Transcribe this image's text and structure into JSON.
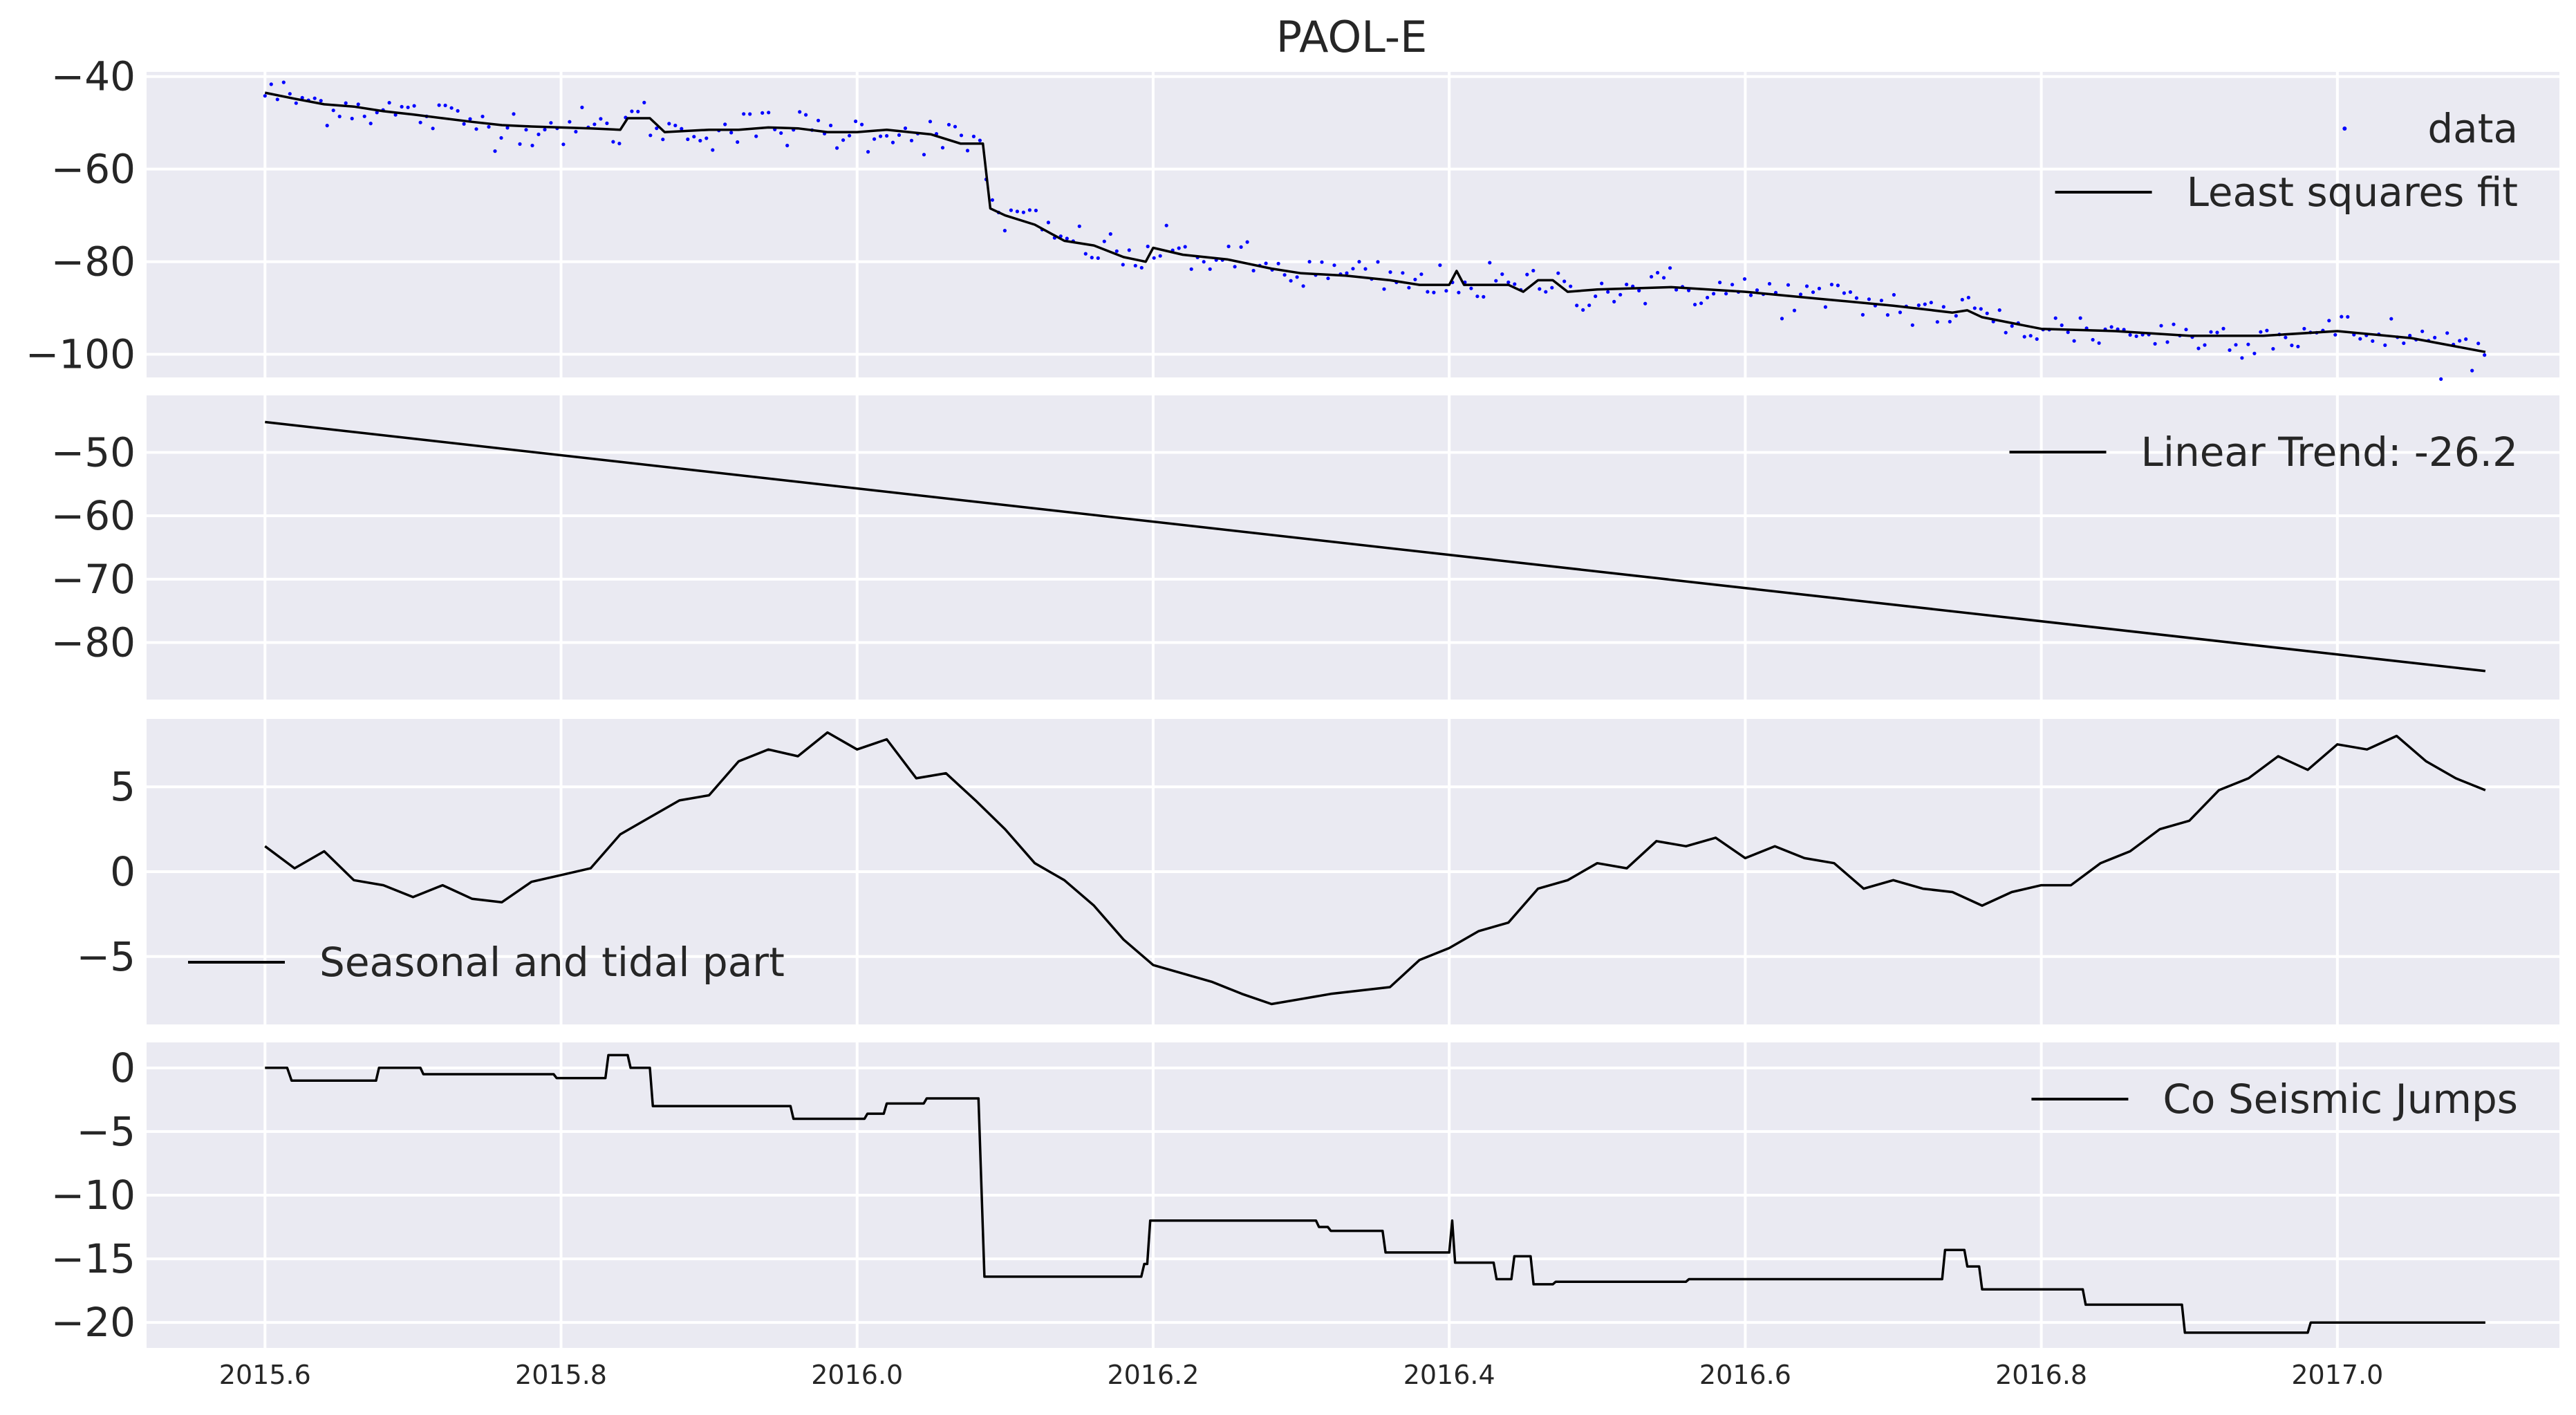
{
  "figure": {
    "title": "PAOL-E"
  },
  "chart_data": [
    {
      "type": "scatter+line",
      "panel": 1,
      "xlim": [
        2015.52,
        2017.15
      ],
      "ylim": [
        -105,
        -39
      ],
      "yticks": [
        -40,
        -60,
        -80,
        -100
      ],
      "ytick_labels": [
        "−40",
        "−60",
        "−80",
        "−100"
      ],
      "grid": true,
      "legend_placement": "upper-right",
      "series": [
        {
          "name": "data",
          "kind": "points",
          "color": "#0000ff",
          "model": {
            "t0": 2015.6,
            "t1": 2017.1,
            "y0": -44,
            "trend_total": -52,
            "jump_at": 2016.085,
            "jump": -12,
            "noise": 2.2,
            "step": 0.0042
          }
        },
        {
          "name": "Least squares fit",
          "kind": "line",
          "color": "#000000",
          "points": [
            [
              2015.6,
              -43.5
            ],
            [
              2015.62,
              -44.8
            ],
            [
              2015.64,
              -46
            ],
            [
              2015.66,
              -46.5
            ],
            [
              2015.68,
              -47.5
            ],
            [
              2015.7,
              -48.2
            ],
            [
              2015.72,
              -49
            ],
            [
              2015.74,
              -49.8
            ],
            [
              2015.76,
              -50.5
            ],
            [
              2015.78,
              -50.8
            ],
            [
              2015.8,
              -51
            ],
            [
              2015.82,
              -51.2
            ],
            [
              2015.84,
              -51.5
            ],
            [
              2015.845,
              -49
            ],
            [
              2015.86,
              -49
            ],
            [
              2015.87,
              -52
            ],
            [
              2015.9,
              -51.5
            ],
            [
              2015.92,
              -51.5
            ],
            [
              2015.94,
              -51
            ],
            [
              2015.96,
              -51.2
            ],
            [
              2015.98,
              -52
            ],
            [
              2016.0,
              -52
            ],
            [
              2016.02,
              -51.5
            ],
            [
              2016.05,
              -52.5
            ],
            [
              2016.07,
              -54.5
            ],
            [
              2016.085,
              -54.5
            ],
            [
              2016.09,
              -68.5
            ],
            [
              2016.1,
              -70
            ],
            [
              2016.12,
              -72
            ],
            [
              2016.14,
              -75.5
            ],
            [
              2016.16,
              -76.5
            ],
            [
              2016.18,
              -79
            ],
            [
              2016.195,
              -80
            ],
            [
              2016.2,
              -77
            ],
            [
              2016.22,
              -78.5
            ],
            [
              2016.25,
              -79.5
            ],
            [
              2016.28,
              -81.5
            ],
            [
              2016.3,
              -82.5
            ],
            [
              2016.33,
              -83
            ],
            [
              2016.36,
              -84
            ],
            [
              2016.38,
              -85
            ],
            [
              2016.4,
              -85
            ],
            [
              2016.405,
              -82
            ],
            [
              2016.41,
              -85
            ],
            [
              2016.44,
              -85
            ],
            [
              2016.45,
              -86.5
            ],
            [
              2016.46,
              -84
            ],
            [
              2016.47,
              -84
            ],
            [
              2016.48,
              -86.5
            ],
            [
              2016.5,
              -86
            ],
            [
              2016.55,
              -85.5
            ],
            [
              2016.6,
              -86.5
            ],
            [
              2016.65,
              -88
            ],
            [
              2016.7,
              -89.5
            ],
            [
              2016.74,
              -91
            ],
            [
              2016.75,
              -90.5
            ],
            [
              2016.76,
              -92
            ],
            [
              2016.8,
              -94.5
            ],
            [
              2016.85,
              -95
            ],
            [
              2016.9,
              -96
            ],
            [
              2016.95,
              -96
            ],
            [
              2017.0,
              -95
            ],
            [
              2017.05,
              -96.5
            ],
            [
              2017.1,
              -99.5
            ]
          ]
        }
      ]
    },
    {
      "type": "line",
      "panel": 2,
      "xlim": [
        2015.52,
        2017.15
      ],
      "ylim": [
        -89,
        -41
      ],
      "yticks": [
        -50,
        -60,
        -70,
        -80
      ],
      "ytick_labels": [
        "−50",
        "−60",
        "−70",
        "−80"
      ],
      "grid": true,
      "legend_placement": "upper-right",
      "series": [
        {
          "name": "Linear Trend: -26.2",
          "color": "#000000",
          "points": [
            [
              2015.6,
              -45.2
            ],
            [
              2017.1,
              -84.5
            ]
          ]
        }
      ]
    },
    {
      "type": "line",
      "panel": 3,
      "xlim": [
        2015.52,
        2017.15
      ],
      "ylim": [
        -9,
        9
      ],
      "yticks": [
        5,
        0,
        -5
      ],
      "ytick_labels": [
        "5",
        "0",
        "−5"
      ],
      "grid": true,
      "legend_placement": "lower-left",
      "series": [
        {
          "name": "Seasonal and tidal part",
          "color": "#000000",
          "points": [
            [
              2015.6,
              1.5
            ],
            [
              2015.62,
              0.2
            ],
            [
              2015.64,
              1.2
            ],
            [
              2015.66,
              -0.5
            ],
            [
              2015.68,
              -0.8
            ],
            [
              2015.7,
              -1.5
            ],
            [
              2015.72,
              -0.8
            ],
            [
              2015.74,
              -1.6
            ],
            [
              2015.76,
              -1.8
            ],
            [
              2015.78,
              -0.6
            ],
            [
              2015.8,
              -0.2
            ],
            [
              2015.82,
              0.2
            ],
            [
              2015.84,
              2.2
            ],
            [
              2015.86,
              3.2
            ],
            [
              2015.88,
              4.2
            ],
            [
              2015.9,
              4.5
            ],
            [
              2015.92,
              6.5
            ],
            [
              2015.94,
              7.2
            ],
            [
              2015.96,
              6.8
            ],
            [
              2015.98,
              8.2
            ],
            [
              2016.0,
              7.2
            ],
            [
              2016.02,
              7.8
            ],
            [
              2016.04,
              5.5
            ],
            [
              2016.06,
              5.8
            ],
            [
              2016.08,
              4.2
            ],
            [
              2016.1,
              2.5
            ],
            [
              2016.12,
              0.5
            ],
            [
              2016.14,
              -0.5
            ],
            [
              2016.16,
              -2
            ],
            [
              2016.18,
              -4
            ],
            [
              2016.2,
              -5.5
            ],
            [
              2016.22,
              -6
            ],
            [
              2016.24,
              -6.5
            ],
            [
              2016.26,
              -7.2
            ],
            [
              2016.28,
              -7.8
            ],
            [
              2016.3,
              -7.5
            ],
            [
              2016.32,
              -7.2
            ],
            [
              2016.34,
              -7
            ],
            [
              2016.36,
              -6.8
            ],
            [
              2016.38,
              -5.2
            ],
            [
              2016.4,
              -4.5
            ],
            [
              2016.42,
              -3.5
            ],
            [
              2016.44,
              -3
            ],
            [
              2016.46,
              -1
            ],
            [
              2016.48,
              -0.5
            ],
            [
              2016.5,
              0.5
            ],
            [
              2016.52,
              0.2
            ],
            [
              2016.54,
              1.8
            ],
            [
              2016.56,
              1.5
            ],
            [
              2016.58,
              2
            ],
            [
              2016.6,
              0.8
            ],
            [
              2016.62,
              1.5
            ],
            [
              2016.64,
              0.8
            ],
            [
              2016.66,
              0.5
            ],
            [
              2016.68,
              -1
            ],
            [
              2016.7,
              -0.5
            ],
            [
              2016.72,
              -1
            ],
            [
              2016.74,
              -1.2
            ],
            [
              2016.76,
              -2
            ],
            [
              2016.78,
              -1.2
            ],
            [
              2016.8,
              -0.8
            ],
            [
              2016.82,
              -0.8
            ],
            [
              2016.84,
              0.5
            ],
            [
              2016.86,
              1.2
            ],
            [
              2016.88,
              2.5
            ],
            [
              2016.9,
              3
            ],
            [
              2016.92,
              4.8
            ],
            [
              2016.94,
              5.5
            ],
            [
              2016.96,
              6.8
            ],
            [
              2016.98,
              6
            ],
            [
              2017.0,
              7.5
            ],
            [
              2017.02,
              7.2
            ],
            [
              2017.04,
              8
            ],
            [
              2017.06,
              6.5
            ],
            [
              2017.08,
              5.5
            ],
            [
              2017.1,
              4.8
            ]
          ]
        }
      ]
    },
    {
      "type": "line",
      "panel": 4,
      "xlim": [
        2015.52,
        2017.15
      ],
      "ylim": [
        -22,
        2
      ],
      "yticks": [
        0,
        -5,
        -10,
        -15,
        -20
      ],
      "ytick_labels": [
        "0",
        "−5",
        "−10",
        "−15",
        "−20"
      ],
      "xticks": [
        2015.6,
        2015.8,
        2016.0,
        2016.2,
        2016.4,
        2016.6,
        2016.8,
        2017.0
      ],
      "xtick_labels": [
        "2015.6",
        "2015.8",
        "2016.0",
        "2016.2",
        "2016.4",
        "2016.6",
        "2016.8",
        "2017.0"
      ],
      "grid": true,
      "legend_placement": "upper-right",
      "series": [
        {
          "name": "Co Seismic Jumps",
          "color": "#000000",
          "points": [
            [
              2015.6,
              0
            ],
            [
              2015.615,
              0
            ],
            [
              2015.618,
              -1
            ],
            [
              2015.675,
              -1
            ],
            [
              2015.677,
              0
            ],
            [
              2015.705,
              0
            ],
            [
              2015.707,
              -0.5
            ],
            [
              2015.795,
              -0.5
            ],
            [
              2015.797,
              -0.8
            ],
            [
              2015.83,
              -0.8
            ],
            [
              2015.832,
              1
            ],
            [
              2015.845,
              1
            ],
            [
              2015.847,
              0
            ],
            [
              2015.86,
              0
            ],
            [
              2015.862,
              -3
            ],
            [
              2015.955,
              -3
            ],
            [
              2015.957,
              -4
            ],
            [
              2016.005,
              -4
            ],
            [
              2016.007,
              -3.6
            ],
            [
              2016.018,
              -3.6
            ],
            [
              2016.02,
              -2.8
            ],
            [
              2016.045,
              -2.8
            ],
            [
              2016.047,
              -2.4
            ],
            [
              2016.082,
              -2.4
            ],
            [
              2016.086,
              -16.4
            ],
            [
              2016.192,
              -16.4
            ],
            [
              2016.194,
              -15.4
            ],
            [
              2016.196,
              -15.4
            ],
            [
              2016.198,
              -12
            ],
            [
              2016.31,
              -12
            ],
            [
              2016.312,
              -12.5
            ],
            [
              2016.318,
              -12.5
            ],
            [
              2016.32,
              -12.8
            ],
            [
              2016.355,
              -12.8
            ],
            [
              2016.357,
              -14.5
            ],
            [
              2016.4,
              -14.5
            ],
            [
              2016.402,
              -12
            ],
            [
              2016.404,
              -15.3
            ],
            [
              2016.43,
              -15.3
            ],
            [
              2016.432,
              -16.6
            ],
            [
              2016.442,
              -16.6
            ],
            [
              2016.444,
              -14.8
            ],
            [
              2016.455,
              -14.8
            ],
            [
              2016.457,
              -17
            ],
            [
              2016.47,
              -17
            ],
            [
              2016.472,
              -16.8
            ],
            [
              2016.56,
              -16.8
            ],
            [
              2016.562,
              -16.6
            ],
            [
              2016.733,
              -16.6
            ],
            [
              2016.735,
              -14.3
            ],
            [
              2016.748,
              -14.3
            ],
            [
              2016.75,
              -15.6
            ],
            [
              2016.758,
              -15.6
            ],
            [
              2016.76,
              -17.4
            ],
            [
              2016.828,
              -17.4
            ],
            [
              2016.83,
              -18.6
            ],
            [
              2016.895,
              -18.6
            ],
            [
              2016.897,
              -20.8
            ],
            [
              2016.98,
              -20.8
            ],
            [
              2016.982,
              -20
            ],
            [
              2017.1,
              -20
            ]
          ]
        }
      ]
    }
  ]
}
